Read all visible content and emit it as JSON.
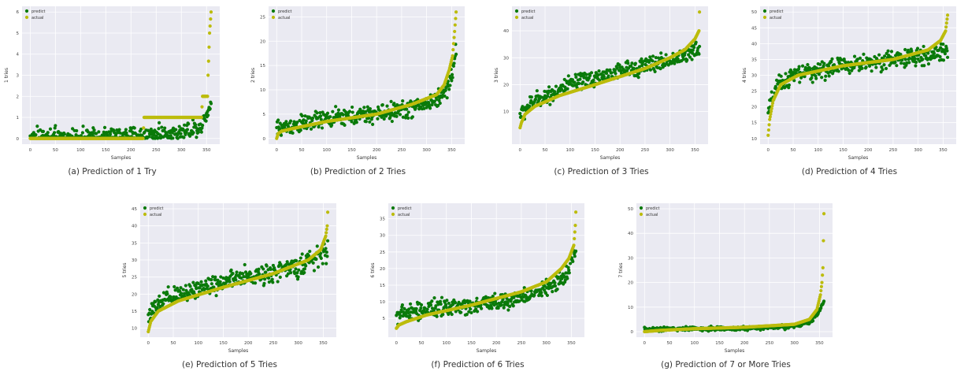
{
  "colors": {
    "predict": "#0a7a0a",
    "actual": "#bcbc0c",
    "plot_bg": "#eaeaf2",
    "grid": "#ffffff"
  },
  "legend": {
    "predict": "predict",
    "actual": "actual"
  },
  "xlabel": "Samples",
  "chart_data": [
    {
      "type": "scatter",
      "caption": "(a) Prediction of 1 Try",
      "ylabel": "1 tries",
      "xlabel": "Samples",
      "xlim": [
        0,
        360
      ],
      "ylim": [
        0,
        6
      ],
      "xticks": [
        0,
        50,
        100,
        150,
        200,
        250,
        300,
        350
      ],
      "yticks": [
        0,
        1,
        2,
        3,
        4,
        5,
        6
      ],
      "legend_position": "top-left",
      "grid": true,
      "n_points": 360,
      "actual_curve": [
        [
          0,
          0
        ],
        [
          224,
          0
        ],
        [
          226,
          1
        ],
        [
          340,
          1
        ],
        [
          342,
          2
        ],
        [
          352,
          2
        ],
        [
          353,
          3
        ],
        [
          356,
          5
        ],
        [
          359,
          6
        ]
      ],
      "predict_curve": [
        [
          0,
          0.05
        ],
        [
          220,
          0.15
        ],
        [
          300,
          0.3
        ],
        [
          340,
          0.6
        ],
        [
          359,
          1.7
        ]
      ],
      "predict_noise": 0.28,
      "predict_min": 0
    },
    {
      "type": "scatter",
      "caption": "(b) Prediction of 2 Tries",
      "ylabel": "2 tries",
      "xlabel": "Samples",
      "xlim": [
        0,
        360
      ],
      "ylim": [
        0,
        26
      ],
      "xticks": [
        0,
        50,
        100,
        150,
        200,
        250,
        300,
        350
      ],
      "yticks": [
        0,
        5,
        10,
        15,
        20,
        25
      ],
      "legend_position": "top-left",
      "grid": true,
      "n_points": 360,
      "actual_curve": [
        [
          0,
          0
        ],
        [
          3,
          1
        ],
        [
          10,
          1.5
        ],
        [
          30,
          2
        ],
        [
          100,
          3.5
        ],
        [
          200,
          5
        ],
        [
          270,
          7
        ],
        [
          320,
          9
        ],
        [
          335,
          11
        ],
        [
          345,
          14
        ],
        [
          352,
          17
        ],
        [
          356,
          22
        ],
        [
          359,
          26
        ]
      ],
      "predict_curve": [
        [
          0,
          2
        ],
        [
          100,
          4
        ],
        [
          200,
          5
        ],
        [
          270,
          6.2
        ],
        [
          320,
          8
        ],
        [
          340,
          10
        ],
        [
          350,
          13
        ],
        [
          359,
          18
        ]
      ],
      "predict_noise": 1.3,
      "predict_min": 0
    },
    {
      "type": "scatter",
      "caption": "(c) Prediction of 3 Tries",
      "ylabel": "3 tries",
      "xlabel": "Samples",
      "xlim": [
        0,
        360
      ],
      "ylim": [
        0,
        47
      ],
      "xticks": [
        0,
        50,
        100,
        150,
        200,
        250,
        300,
        350
      ],
      "yticks": [
        10,
        20,
        30,
        40
      ],
      "legend_position": "top-left",
      "grid": true,
      "n_points": 360,
      "actual_curve": [
        [
          0,
          4
        ],
        [
          3,
          6
        ],
        [
          10,
          9
        ],
        [
          30,
          12
        ],
        [
          80,
          16
        ],
        [
          150,
          20
        ],
        [
          200,
          23
        ],
        [
          250,
          26
        ],
        [
          300,
          30
        ],
        [
          330,
          33
        ],
        [
          350,
          37
        ],
        [
          358,
          40
        ],
        [
          359,
          47
        ]
      ],
      "predict_curve": [
        [
          0,
          9
        ],
        [
          30,
          14
        ],
        [
          100,
          20
        ],
        [
          200,
          25
        ],
        [
          300,
          29
        ],
        [
          359,
          33
        ]
      ],
      "predict_noise": 2.2,
      "predict_min": 2
    },
    {
      "type": "scatter",
      "caption": "(d) Prediction of 4 Tries",
      "ylabel": "4 tries",
      "xlabel": "Samples",
      "xlim": [
        0,
        360
      ],
      "ylim": [
        10,
        50
      ],
      "xticks": [
        0,
        50,
        100,
        150,
        200,
        250,
        300,
        350
      ],
      "yticks": [
        10,
        15,
        20,
        25,
        30,
        35,
        40,
        45,
        50
      ],
      "legend_position": "top-left",
      "grid": true,
      "n_points": 360,
      "actual_curve": [
        [
          0,
          11
        ],
        [
          3,
          16
        ],
        [
          10,
          22
        ],
        [
          25,
          27
        ],
        [
          60,
          30
        ],
        [
          150,
          33
        ],
        [
          250,
          35
        ],
        [
          320,
          38
        ],
        [
          345,
          41
        ],
        [
          355,
          44
        ],
        [
          359,
          49
        ]
      ],
      "predict_curve": [
        [
          0,
          18
        ],
        [
          15,
          26
        ],
        [
          50,
          30
        ],
        [
          150,
          33
        ],
        [
          250,
          35
        ],
        [
          320,
          36
        ],
        [
          359,
          38
        ]
      ],
      "predict_noise": 2,
      "predict_min": 10
    },
    {
      "type": "scatter",
      "caption": "(e) Prediction of 5 Tries",
      "ylabel": "5 tries",
      "xlabel": "Samples",
      "xlim": [
        0,
        360
      ],
      "ylim": [
        9,
        45
      ],
      "xticks": [
        0,
        50,
        100,
        150,
        200,
        250,
        300,
        350
      ],
      "yticks": [
        10,
        15,
        20,
        25,
        30,
        35,
        40,
        45
      ],
      "legend_position": "top-left",
      "grid": true,
      "n_points": 360,
      "actual_curve": [
        [
          0,
          9
        ],
        [
          5,
          12
        ],
        [
          20,
          15
        ],
        [
          60,
          18
        ],
        [
          150,
          22
        ],
        [
          250,
          26
        ],
        [
          320,
          30
        ],
        [
          345,
          33
        ],
        [
          355,
          37
        ],
        [
          358,
          40
        ],
        [
          359,
          44
        ]
      ],
      "predict_curve": [
        [
          0,
          14
        ],
        [
          30,
          18
        ],
        [
          100,
          22
        ],
        [
          200,
          25
        ],
        [
          300,
          28
        ],
        [
          340,
          31
        ],
        [
          359,
          33
        ]
      ],
      "predict_noise": 2,
      "predict_min": 9
    },
    {
      "type": "scatter",
      "caption": "(f) Prediction of 6 Tries",
      "ylabel": "6 tries",
      "xlabel": "Samples",
      "xlim": [
        0,
        360
      ],
      "ylim": [
        1,
        38
      ],
      "xticks": [
        0,
        50,
        100,
        150,
        200,
        250,
        300,
        350
      ],
      "yticks": [
        5,
        10,
        15,
        20,
        25,
        30,
        35
      ],
      "legend_position": "top-left",
      "grid": true,
      "n_points": 360,
      "actual_curve": [
        [
          0,
          2
        ],
        [
          5,
          3
        ],
        [
          20,
          4
        ],
        [
          60,
          6
        ],
        [
          150,
          9
        ],
        [
          250,
          13
        ],
        [
          300,
          16
        ],
        [
          330,
          20
        ],
        [
          345,
          23
        ],
        [
          355,
          27
        ],
        [
          358,
          33
        ],
        [
          359,
          37
        ]
      ],
      "predict_curve": [
        [
          0,
          6
        ],
        [
          50,
          7.5
        ],
        [
          150,
          9
        ],
        [
          250,
          11
        ],
        [
          300,
          14
        ],
        [
          340,
          18
        ],
        [
          359,
          26
        ]
      ],
      "predict_noise": 1.8,
      "predict_min": 1
    },
    {
      "type": "scatter",
      "caption": "(g) Prediction of 7 or More Tries",
      "ylabel": "7 tries",
      "xlabel": "Samples",
      "xlim": [
        0,
        360
      ],
      "ylim": [
        0,
        50
      ],
      "xticks": [
        0,
        50,
        100,
        150,
        200,
        250,
        300,
        350
      ],
      "yticks": [
        0,
        10,
        20,
        30,
        40,
        50
      ],
      "legend_position": "top-left",
      "grid": true,
      "n_points": 360,
      "actual_curve": [
        [
          0,
          0
        ],
        [
          30,
          0.5
        ],
        [
          100,
          1.2
        ],
        [
          200,
          1.8
        ],
        [
          260,
          2.5
        ],
        [
          300,
          3
        ],
        [
          330,
          5
        ],
        [
          345,
          9
        ],
        [
          352,
          15
        ],
        [
          355,
          20
        ],
        [
          357,
          26
        ],
        [
          359,
          48
        ]
      ],
      "predict_curve": [
        [
          0,
          1
        ],
        [
          200,
          1.3
        ],
        [
          290,
          2
        ],
        [
          330,
          3.5
        ],
        [
          345,
          7
        ],
        [
          359,
          12
        ]
      ],
      "predict_noise": 0.6,
      "predict_min": 0
    }
  ]
}
